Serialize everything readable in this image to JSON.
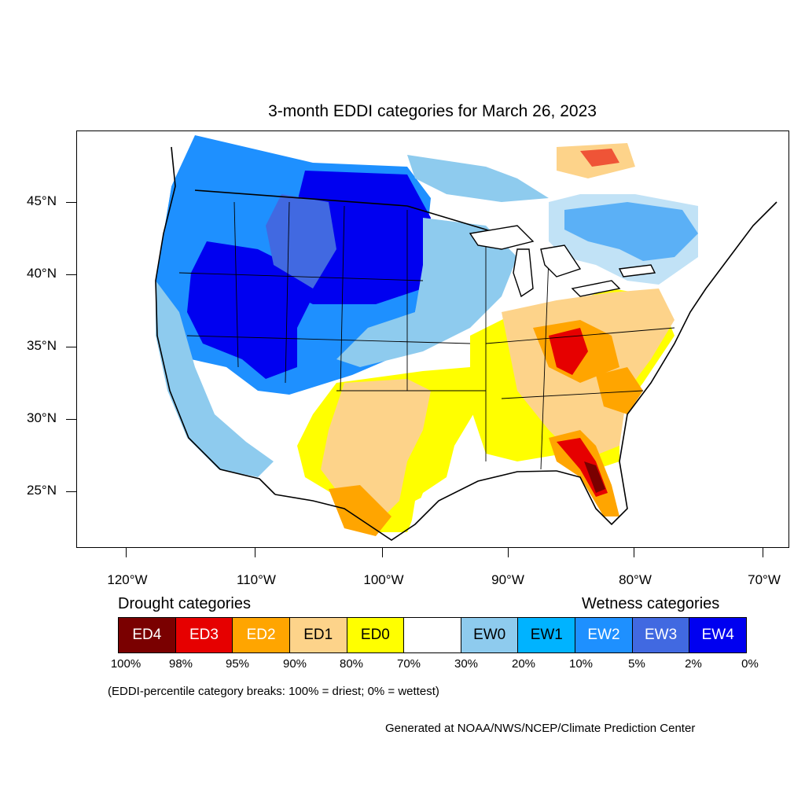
{
  "title": "3-month EDDI categories for March 26, 2023",
  "lat_labels": [
    "45°N",
    "40°N",
    "35°N",
    "30°N",
    "25°N"
  ],
  "lon_labels": [
    "120°W",
    "110°W",
    "100°W",
    "90°W",
    "80°W",
    "70°W"
  ],
  "drought_heading": "Drought categories",
  "wetness_heading": "Wetness categories",
  "legend": [
    {
      "label": "ED4",
      "color": "#7a0000",
      "text_color": "#ffffff"
    },
    {
      "label": "ED3",
      "color": "#e60000",
      "text_color": "#ffffff"
    },
    {
      "label": "ED2",
      "color": "#ffa500",
      "text_color": "#ffffff"
    },
    {
      "label": "ED1",
      "color": "#fdd38a",
      "text_color": "#000000"
    },
    {
      "label": "ED0",
      "color": "#ffff00",
      "text_color": "#000000"
    },
    {
      "label": "",
      "color": "#ffffff",
      "text_color": "#000000"
    },
    {
      "label": "EW0",
      "color": "#8ecbee",
      "text_color": "#000000"
    },
    {
      "label": "EW1",
      "color": "#00b3ff",
      "text_color": "#000000"
    },
    {
      "label": "EW2",
      "color": "#1e90ff",
      "text_color": "#ffffff"
    },
    {
      "label": "EW3",
      "color": "#4169e1",
      "text_color": "#ffffff"
    },
    {
      "label": "EW4",
      "color": "#0000f0",
      "text_color": "#ffffff"
    }
  ],
  "percent_breaks": [
    "100%",
    "98%",
    "95%",
    "90%",
    "80%",
    "70%",
    "30%",
    "20%",
    "10%",
    "5%",
    "2%",
    "0%"
  ],
  "note": "(EDDI-percentile category breaks: 100% = driest; 0% = wettest)",
  "credit": "Generated at NOAA/NWS/NCEP/Climate Prediction Center"
}
